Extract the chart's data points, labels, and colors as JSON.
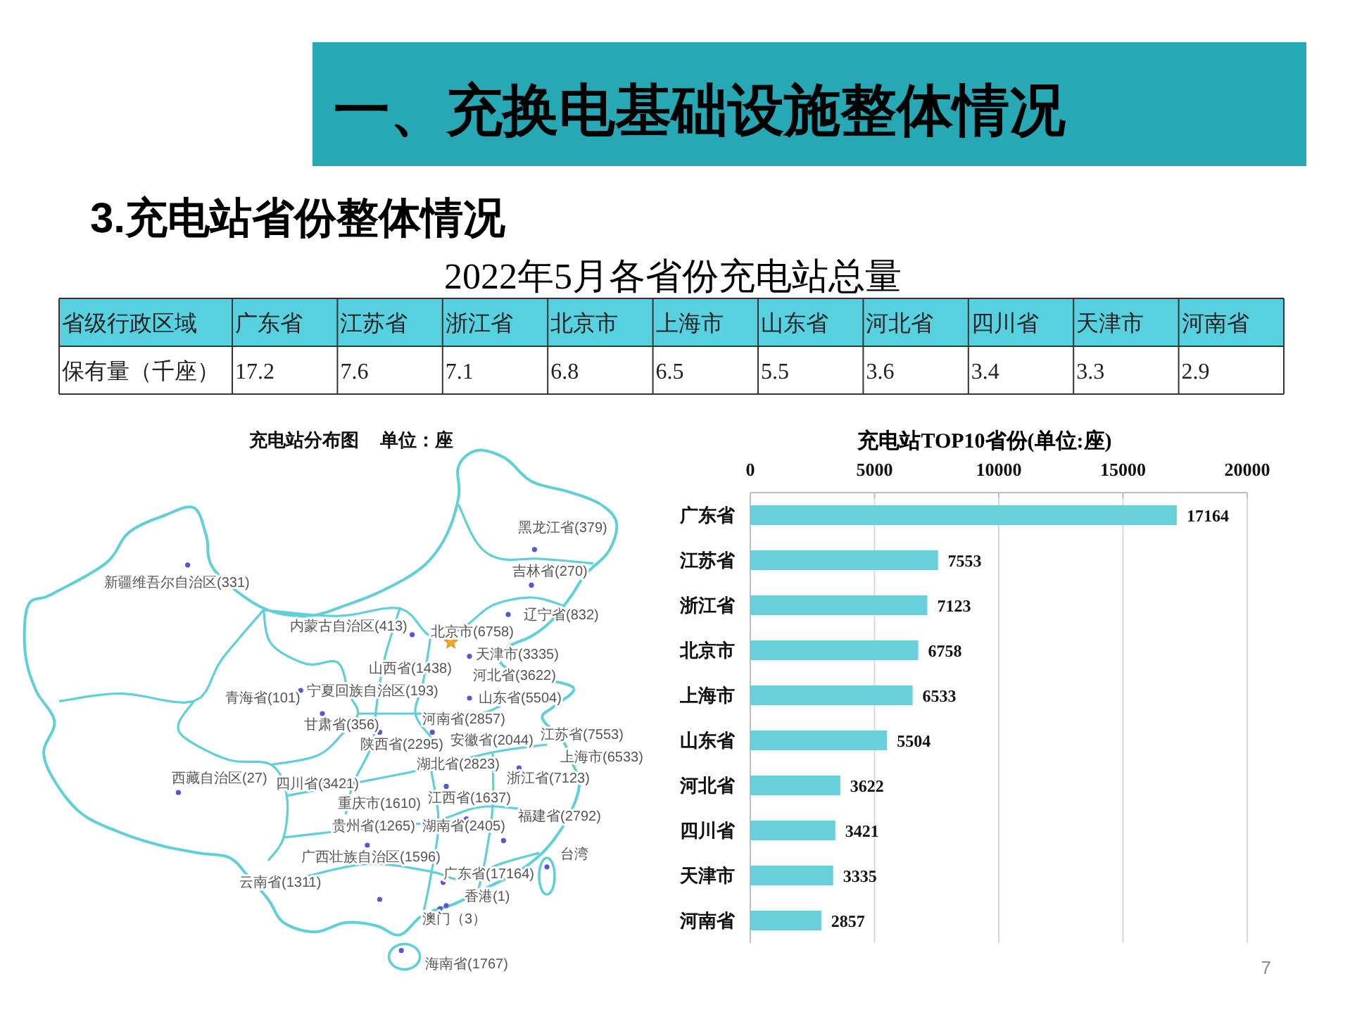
{
  "chart_data": [
    {
      "type": "other",
      "title": "一、充换电基础设施整体情况",
      "subtitle": "3.充电站省份整体情况",
      "annotations": [
        "7"
      ]
    },
    {
      "type": "other",
      "title": "2022年5月各省份充电站总量",
      "xlabel": "省级行政区域",
      "ylabel": "保有量（千座）",
      "categories": [
        "广东省",
        "江苏省",
        "浙江省",
        "北京市",
        "上海市",
        "山东省",
        "河北省",
        "四川省",
        "天津市",
        "河南省"
      ],
      "values": [
        17.2,
        7.6,
        7.1,
        6.8,
        6.5,
        5.5,
        3.6,
        3.4,
        3.3,
        2.9
      ],
      "data_labels": true
    },
    {
      "type": "other",
      "title": "充电站分布图",
      "subtitle": "单位：座",
      "categories": [
        "黑龙江省",
        "吉林省",
        "新疆维吾尔自治区",
        "辽宁省",
        "内蒙古自治区",
        "北京市",
        "天津市",
        "山西省",
        "河北省",
        "宁夏回族自治区",
        "青海省",
        "山东省",
        "河南省",
        "甘肃省",
        "江苏省",
        "安徽省",
        "陕西省",
        "上海市",
        "湖北省",
        "西藏自治区",
        "浙江省",
        "四川省",
        "江西省",
        "重庆市",
        "福建省",
        "贵州省",
        "湖南省",
        "台湾",
        "广西壮族自治区",
        "广东省",
        "云南省",
        "香港",
        "澳门",
        "海南省"
      ],
      "values": [
        379,
        270,
        331,
        832,
        413,
        6758,
        3335,
        1438,
        3622,
        193,
        101,
        5504,
        2857,
        356,
        7553,
        2044,
        2295,
        6533,
        2823,
        27,
        7123,
        3421,
        1637,
        1610,
        2792,
        1265,
        2405,
        null,
        1596,
        17164,
        1311,
        1,
        3,
        1767
      ],
      "value_labels": [
        "(379)",
        "(270)",
        "(331)",
        "(832)",
        "(413)",
        "(6758)",
        "(3335)",
        "(1438)",
        "(3622)",
        "(193)",
        "(101)",
        "(5504)",
        "(2857)",
        "(356)",
        "(7553)",
        "(2044)",
        "(2295)",
        "(6533)",
        "(2823)",
        "(27)",
        "(7123)",
        "(3421)",
        "(1637)",
        "(1610)",
        "(2792)",
        "(1265)",
        "(2405)",
        null,
        "(1596)",
        "(17164)",
        "(1311)",
        "(1)",
        "（3）",
        "(1767)"
      ]
    },
    {
      "type": "bar",
      "orientation": "horizontal",
      "title": "充电站TOP10省份(单位:座)",
      "categories": [
        "广东省",
        "江苏省",
        "浙江省",
        "北京市",
        "上海市",
        "山东省",
        "河北省",
        "四川省",
        "天津市",
        "河南省"
      ],
      "values": [
        17164,
        7553,
        7123,
        6758,
        6533,
        5504,
        3622,
        3421,
        3335,
        2857
      ],
      "color": "#69d0db",
      "xlim": [
        0,
        20000
      ],
      "xticks": [
        0,
        5000,
        10000,
        15000,
        20000
      ],
      "grid": "x",
      "data_labels": true
    }
  ]
}
